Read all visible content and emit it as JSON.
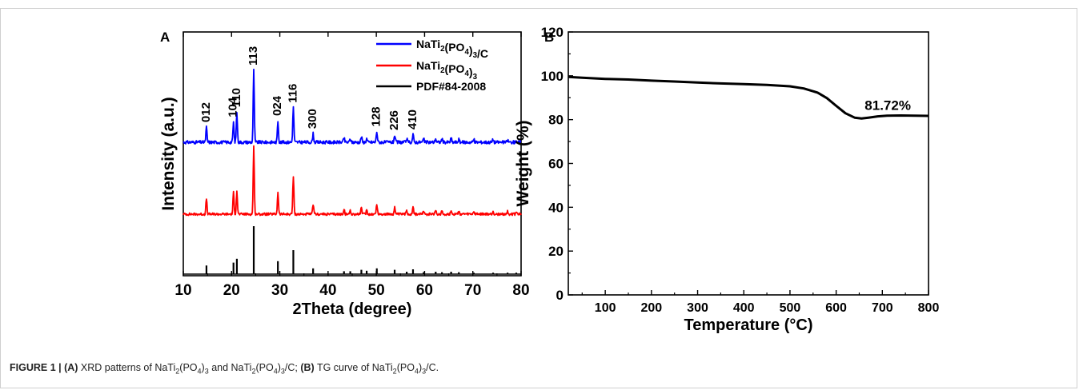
{
  "figure_caption": {
    "label": "FIGURE 1 | ",
    "part_a": "(A)",
    "text_a": " XRD patterns of NaTi",
    "s1": "2",
    "t2": "(PO",
    "s2": "4",
    "t3": ")",
    "s3": "3",
    "t4": " and NaTi",
    "s4": "2",
    "t5": "(PO",
    "s5": "4",
    "t6": ")",
    "s6": "3",
    "t7": "/C; ",
    "part_b": "(B)",
    "text_b": " TG curve of NaTi",
    "s7": "2",
    "t8": "(PO",
    "s8": "4",
    "t9": ")",
    "s9": "3",
    "t10": "/C."
  },
  "chart_data": [
    {
      "type": "line",
      "panel_label": "A",
      "xlabel": "2Theta (degree)",
      "ylabel": "Intensity (a.u.)",
      "xlim": [
        10,
        80
      ],
      "x_ticks": [
        "10",
        "20",
        "30",
        "40",
        "50",
        "60",
        "70",
        "80"
      ],
      "y_ticks": [],
      "legend": [
        {
          "name": "NaTi2(PO4)3/C",
          "main": "NaTi",
          "sub1": "2",
          "mid": "(PO",
          "sub2": "4",
          "sub3": "3",
          "tail": "/C",
          "color": "#0000ff"
        },
        {
          "name": "NaTi2(PO4)3",
          "main": "NaTi",
          "sub1": "2",
          "mid": "(PO",
          "sub2": "4",
          "sub3": "3",
          "tail": "",
          "color": "#ff0000"
        },
        {
          "name": "PDF#84-2008",
          "main": "PDF#84-2008",
          "color": "#000000"
        }
      ],
      "peaks": [
        {
          "x": 14.8,
          "hkl": "012",
          "blue": 0.21,
          "red": 0.23,
          "ref": 0.18
        },
        {
          "x": 20.4,
          "hkl": "104",
          "blue": 0.28,
          "red": 0.32,
          "ref": 0.24
        },
        {
          "x": 21.1,
          "hkl": "110",
          "blue": 0.42,
          "red": 0.35,
          "ref": 0.32
        },
        {
          "x": 24.6,
          "hkl": "113",
          "blue": 1.0,
          "red": 1.0,
          "ref": 1.0
        },
        {
          "x": 29.6,
          "hkl": "024",
          "blue": 0.3,
          "red": 0.33,
          "ref": 0.27
        },
        {
          "x": 32.8,
          "hkl": "116",
          "blue": 0.48,
          "red": 0.55,
          "ref": 0.5
        },
        {
          "x": 36.9,
          "hkl": "300",
          "blue": 0.12,
          "red": 0.15,
          "ref": 0.12
        },
        {
          "x": 43.3,
          "hkl": "",
          "blue": 0.06,
          "red": 0.07,
          "ref": 0.06
        },
        {
          "x": 44.6,
          "hkl": "",
          "blue": 0.05,
          "red": 0.06,
          "ref": 0.06
        },
        {
          "x": 46.9,
          "hkl": "",
          "blue": 0.08,
          "red": 0.1,
          "ref": 0.09
        },
        {
          "x": 48.0,
          "hkl": "",
          "blue": 0.05,
          "red": 0.06,
          "ref": 0.07
        },
        {
          "x": 50.1,
          "hkl": "128",
          "blue": 0.15,
          "red": 0.15,
          "ref": 0.12
        },
        {
          "x": 53.8,
          "hkl": "226",
          "blue": 0.1,
          "red": 0.1,
          "ref": 0.09
        },
        {
          "x": 56.3,
          "hkl": "",
          "blue": 0.05,
          "red": 0.06,
          "ref": 0.05
        },
        {
          "x": 57.6,
          "hkl": "410",
          "blue": 0.11,
          "red": 0.12,
          "ref": 0.1
        },
        {
          "x": 59.8,
          "hkl": "",
          "blue": 0.05,
          "red": 0.05,
          "ref": 0.04
        },
        {
          "x": 62.3,
          "hkl": "",
          "blue": 0.05,
          "red": 0.06,
          "ref": 0.05
        },
        {
          "x": 63.6,
          "hkl": "",
          "blue": 0.05,
          "red": 0.05,
          "ref": 0.04
        },
        {
          "x": 65.5,
          "hkl": "",
          "blue": 0.06,
          "red": 0.06,
          "ref": 0.05
        },
        {
          "x": 67.1,
          "hkl": "",
          "blue": 0.04,
          "red": 0.05,
          "ref": 0.04
        },
        {
          "x": 70.2,
          "hkl": "",
          "blue": 0.04,
          "red": 0.04,
          "ref": 0.03
        },
        {
          "x": 74.2,
          "hkl": "",
          "blue": 0.04,
          "red": 0.04,
          "ref": 0.03
        },
        {
          "x": 77.2,
          "hkl": "",
          "blue": 0.03,
          "red": 0.04,
          "ref": 0.03
        },
        {
          "x": 79.0,
          "hkl": "",
          "blue": 0.03,
          "red": 0.03,
          "ref": 0.03
        }
      ]
    },
    {
      "type": "line",
      "panel_label": "B",
      "xlabel": "Temperature (°C)",
      "ylabel": "Weight (%)",
      "xlim": [
        20,
        800
      ],
      "ylim": [
        0,
        120
      ],
      "x_ticks": [
        "100",
        "200",
        "300",
        "400",
        "500",
        "600",
        "700",
        "800"
      ],
      "y_ticks": [
        "0",
        "20",
        "40",
        "60",
        "80",
        "100",
        "120"
      ],
      "annotation": {
        "text": "81.72%",
        "x": 700,
        "y": 84.5
      },
      "series": [
        {
          "color": "#000000",
          "x": [
            20,
            50,
            100,
            150,
            200,
            250,
            300,
            350,
            400,
            450,
            500,
            530,
            560,
            580,
            600,
            620,
            640,
            655,
            670,
            690,
            710,
            740,
            770,
            800
          ],
          "y": [
            99.5,
            99.1,
            98.6,
            98.3,
            97.8,
            97.4,
            96.9,
            96.5,
            96.2,
            95.8,
            95.2,
            94.2,
            92.3,
            89.8,
            86.3,
            82.9,
            80.9,
            80.5,
            80.9,
            81.5,
            81.8,
            81.9,
            81.8,
            81.7
          ]
        }
      ]
    }
  ]
}
